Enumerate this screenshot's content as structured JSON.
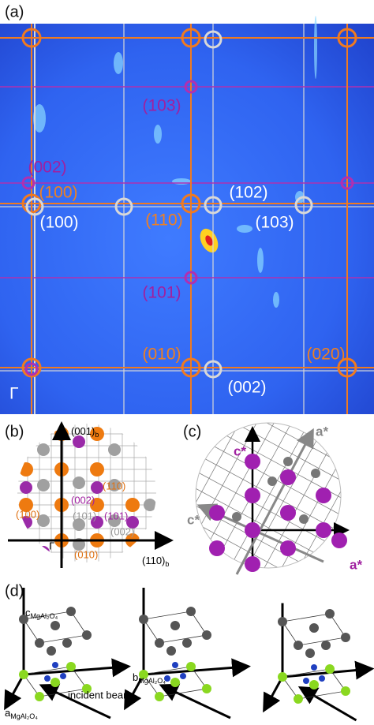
{
  "panel_a": {
    "label": "(a)",
    "gamma": "Γ",
    "annotations": [
      "(103)",
      "(002)",
      "(100)",
      "(100)",
      "(110)",
      "(102)",
      "(103)",
      "(101)",
      "(010)",
      "(020)",
      "(002)"
    ]
  },
  "panel_b": {
    "label": "(b)",
    "gamma": "Γ",
    "axis_vertical": {
      "text": "(001)",
      "sub": "b"
    },
    "axis_horizontal": {
      "text": "(110)",
      "sub": "b"
    },
    "annotations": [
      "(002)",
      "(110)",
      "(100)",
      "(101)",
      "(101)",
      "(002)",
      "(010)"
    ]
  },
  "panel_c": {
    "label": "(c)",
    "annotations": [
      "c*",
      "a*",
      "c*",
      "a*"
    ]
  },
  "panel_d": {
    "label": "(d)",
    "axes": [
      {
        "text": "c",
        "sub": "MgAl₂O₄"
      },
      {
        "text": "b",
        "sub": "MgAl₂O₄"
      },
      {
        "text": "a",
        "sub": "MgAl₂O₄"
      }
    ],
    "beam": "incident beam"
  }
}
